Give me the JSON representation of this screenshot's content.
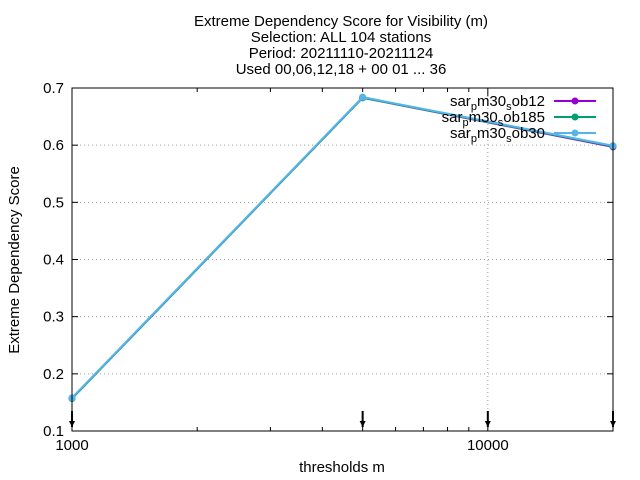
{
  "chart_data": {
    "type": "line",
    "title_lines": [
      "Extreme Dependency Score  for Visibility (m)",
      "Selection: ALL     104 stations",
      "Period: 20211110-20211124",
      "Used 00,06,12,18 + 00 01 ... 36"
    ],
    "xlabel": "thresholds m",
    "ylabel": "Extreme Dependency Score",
    "x_scale": "log",
    "xlim": [
      1000,
      20000
    ],
    "ylim": [
      0.1,
      0.7
    ],
    "x_ticks": [
      1000,
      10000
    ],
    "x_tick_labels": [
      "1000",
      "10000"
    ],
    "y_ticks": [
      0.1,
      0.2,
      0.3,
      0.4,
      0.5,
      0.6,
      0.7
    ],
    "y_tick_labels": [
      "0.1",
      "0.2",
      "0.3",
      "0.4",
      "0.5",
      "0.6",
      "0.7"
    ],
    "grid": true,
    "legend_position": "top-right",
    "x": [
      1000,
      5000,
      20000
    ],
    "series": [
      {
        "legend_parts": [
          "sar",
          "p",
          "m30",
          "s",
          "ob12"
        ],
        "color": "#9400d3",
        "values": [
          0.157,
          0.683,
          0.597
        ]
      },
      {
        "legend_parts": [
          "sar",
          "p",
          "m30",
          "s",
          "ob185"
        ],
        "color": "#009e73",
        "values": [
          0.157,
          0.683,
          0.598
        ]
      },
      {
        "legend_parts": [
          "sar",
          "p",
          "m30",
          "s",
          "ob30"
        ],
        "color": "#56b4e9",
        "values": [
          0.158,
          0.684,
          0.599
        ]
      }
    ],
    "threshold_marks": [
      1000,
      5000,
      10000,
      20000
    ]
  }
}
